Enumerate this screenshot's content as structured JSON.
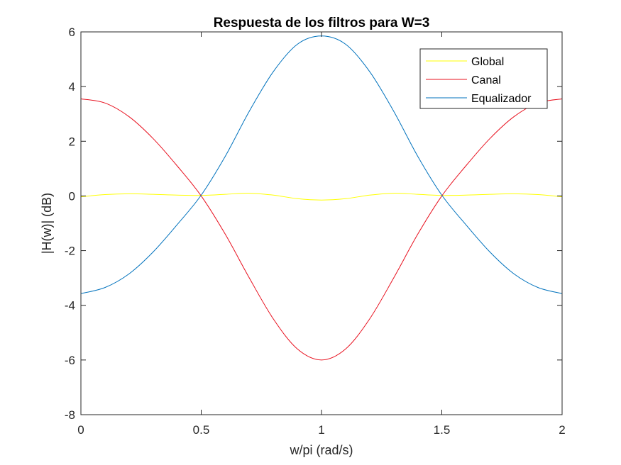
{
  "chart_data": {
    "type": "line",
    "title": "Respuesta de los filtros para W=3",
    "xlabel": "w/pi (rad/s)",
    "ylabel": "|H(w)|  (dB)",
    "xlim": [
      0,
      2
    ],
    "ylim": [
      -8,
      6
    ],
    "xticks": [
      0,
      0.5,
      1,
      1.5,
      2
    ],
    "xtick_labels": [
      "0",
      "0.5",
      "1",
      "1.5",
      "2"
    ],
    "yticks": [
      -8,
      -6,
      -4,
      -2,
      0,
      2,
      4,
      6
    ],
    "ytick_labels": [
      "-8",
      "-6",
      "-4",
      "-2",
      "0",
      "2",
      "4",
      "6"
    ],
    "grid": false,
    "legend_position": "top-right",
    "series": [
      {
        "name": "Global",
        "color": "#FFFF00",
        "x": [
          0,
          0.1,
          0.2,
          0.3,
          0.4,
          0.5,
          0.6,
          0.7,
          0.8,
          0.9,
          1.0,
          1.1,
          1.2,
          1.3,
          1.4,
          1.5,
          1.6,
          1.7,
          1.8,
          1.9,
          2.0
        ],
        "y": [
          -0.03,
          0.05,
          0.08,
          0.06,
          0.03,
          0.02,
          0.06,
          0.1,
          0.03,
          -0.1,
          -0.15,
          -0.1,
          0.03,
          0.1,
          0.06,
          0.02,
          0.03,
          0.06,
          0.08,
          0.05,
          -0.03
        ]
      },
      {
        "name": "Canal",
        "color": "#E8101E",
        "x": [
          0,
          0.1,
          0.2,
          0.3,
          0.4,
          0.5,
          0.6,
          0.7,
          0.8,
          0.9,
          1.0,
          1.1,
          1.2,
          1.3,
          1.4,
          1.5,
          1.6,
          1.7,
          1.8,
          1.9,
          2.0
        ],
        "y": [
          3.55,
          3.4,
          2.9,
          2.1,
          1.1,
          0.0,
          -1.4,
          -3.0,
          -4.5,
          -5.6,
          -6.0,
          -5.6,
          -4.5,
          -3.0,
          -1.4,
          0.0,
          1.1,
          2.1,
          2.9,
          3.4,
          3.55
        ]
      },
      {
        "name": "Equalizador",
        "color": "#0072BD",
        "x": [
          0,
          0.1,
          0.2,
          0.3,
          0.4,
          0.5,
          0.6,
          0.7,
          0.8,
          0.9,
          1.0,
          1.1,
          1.2,
          1.3,
          1.4,
          1.5,
          1.6,
          1.7,
          1.8,
          1.9,
          2.0
        ],
        "y": [
          -3.57,
          -3.35,
          -2.85,
          -2.05,
          -1.05,
          0.03,
          1.45,
          3.1,
          4.55,
          5.55,
          5.85,
          5.55,
          4.55,
          3.1,
          1.45,
          0.03,
          -1.05,
          -2.05,
          -2.85,
          -3.35,
          -3.57
        ]
      }
    ]
  }
}
